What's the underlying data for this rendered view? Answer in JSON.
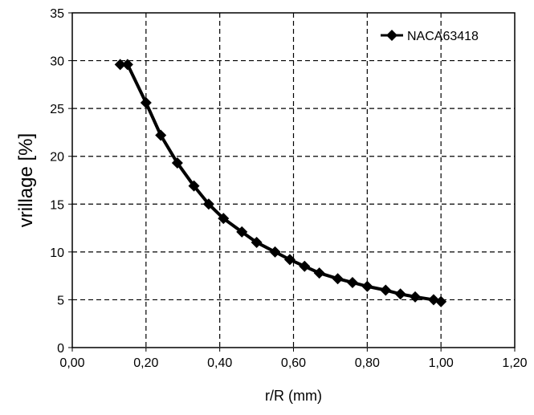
{
  "chart_data": {
    "type": "line",
    "title": "",
    "xlabel": "r/R (mm)",
    "ylabel": "vrillage [%]",
    "xlim": [
      0,
      1.2
    ],
    "ylim": [
      0,
      35
    ],
    "x_ticks": [
      0,
      0.2,
      0.4,
      0.6,
      0.8,
      1.0,
      1.2
    ],
    "x_tick_labels": [
      "0,00",
      "0,20",
      "0,40",
      "0,60",
      "0,80",
      "1,00",
      "1,20"
    ],
    "y_ticks": [
      0,
      5,
      10,
      15,
      20,
      25,
      30,
      35
    ],
    "y_tick_labels": [
      "0",
      "5",
      "10",
      "15",
      "20",
      "25",
      "30",
      "35"
    ],
    "grid": true,
    "grid_style": "dashed",
    "legend_position": "top-right",
    "series": [
      {
        "name": "NACA63418",
        "color": "#000000",
        "marker": "diamond",
        "x": [
          0.13,
          0.15,
          0.2,
          0.24,
          0.285,
          0.33,
          0.37,
          0.41,
          0.46,
          0.5,
          0.55,
          0.59,
          0.63,
          0.67,
          0.72,
          0.76,
          0.8,
          0.85,
          0.89,
          0.93,
          0.98,
          1.0
        ],
        "y": [
          29.6,
          29.6,
          25.6,
          22.2,
          19.3,
          16.9,
          15.0,
          13.5,
          12.1,
          11.0,
          10.0,
          9.2,
          8.5,
          7.8,
          7.2,
          6.8,
          6.4,
          6.0,
          5.6,
          5.3,
          5.0,
          4.8
        ]
      }
    ]
  }
}
